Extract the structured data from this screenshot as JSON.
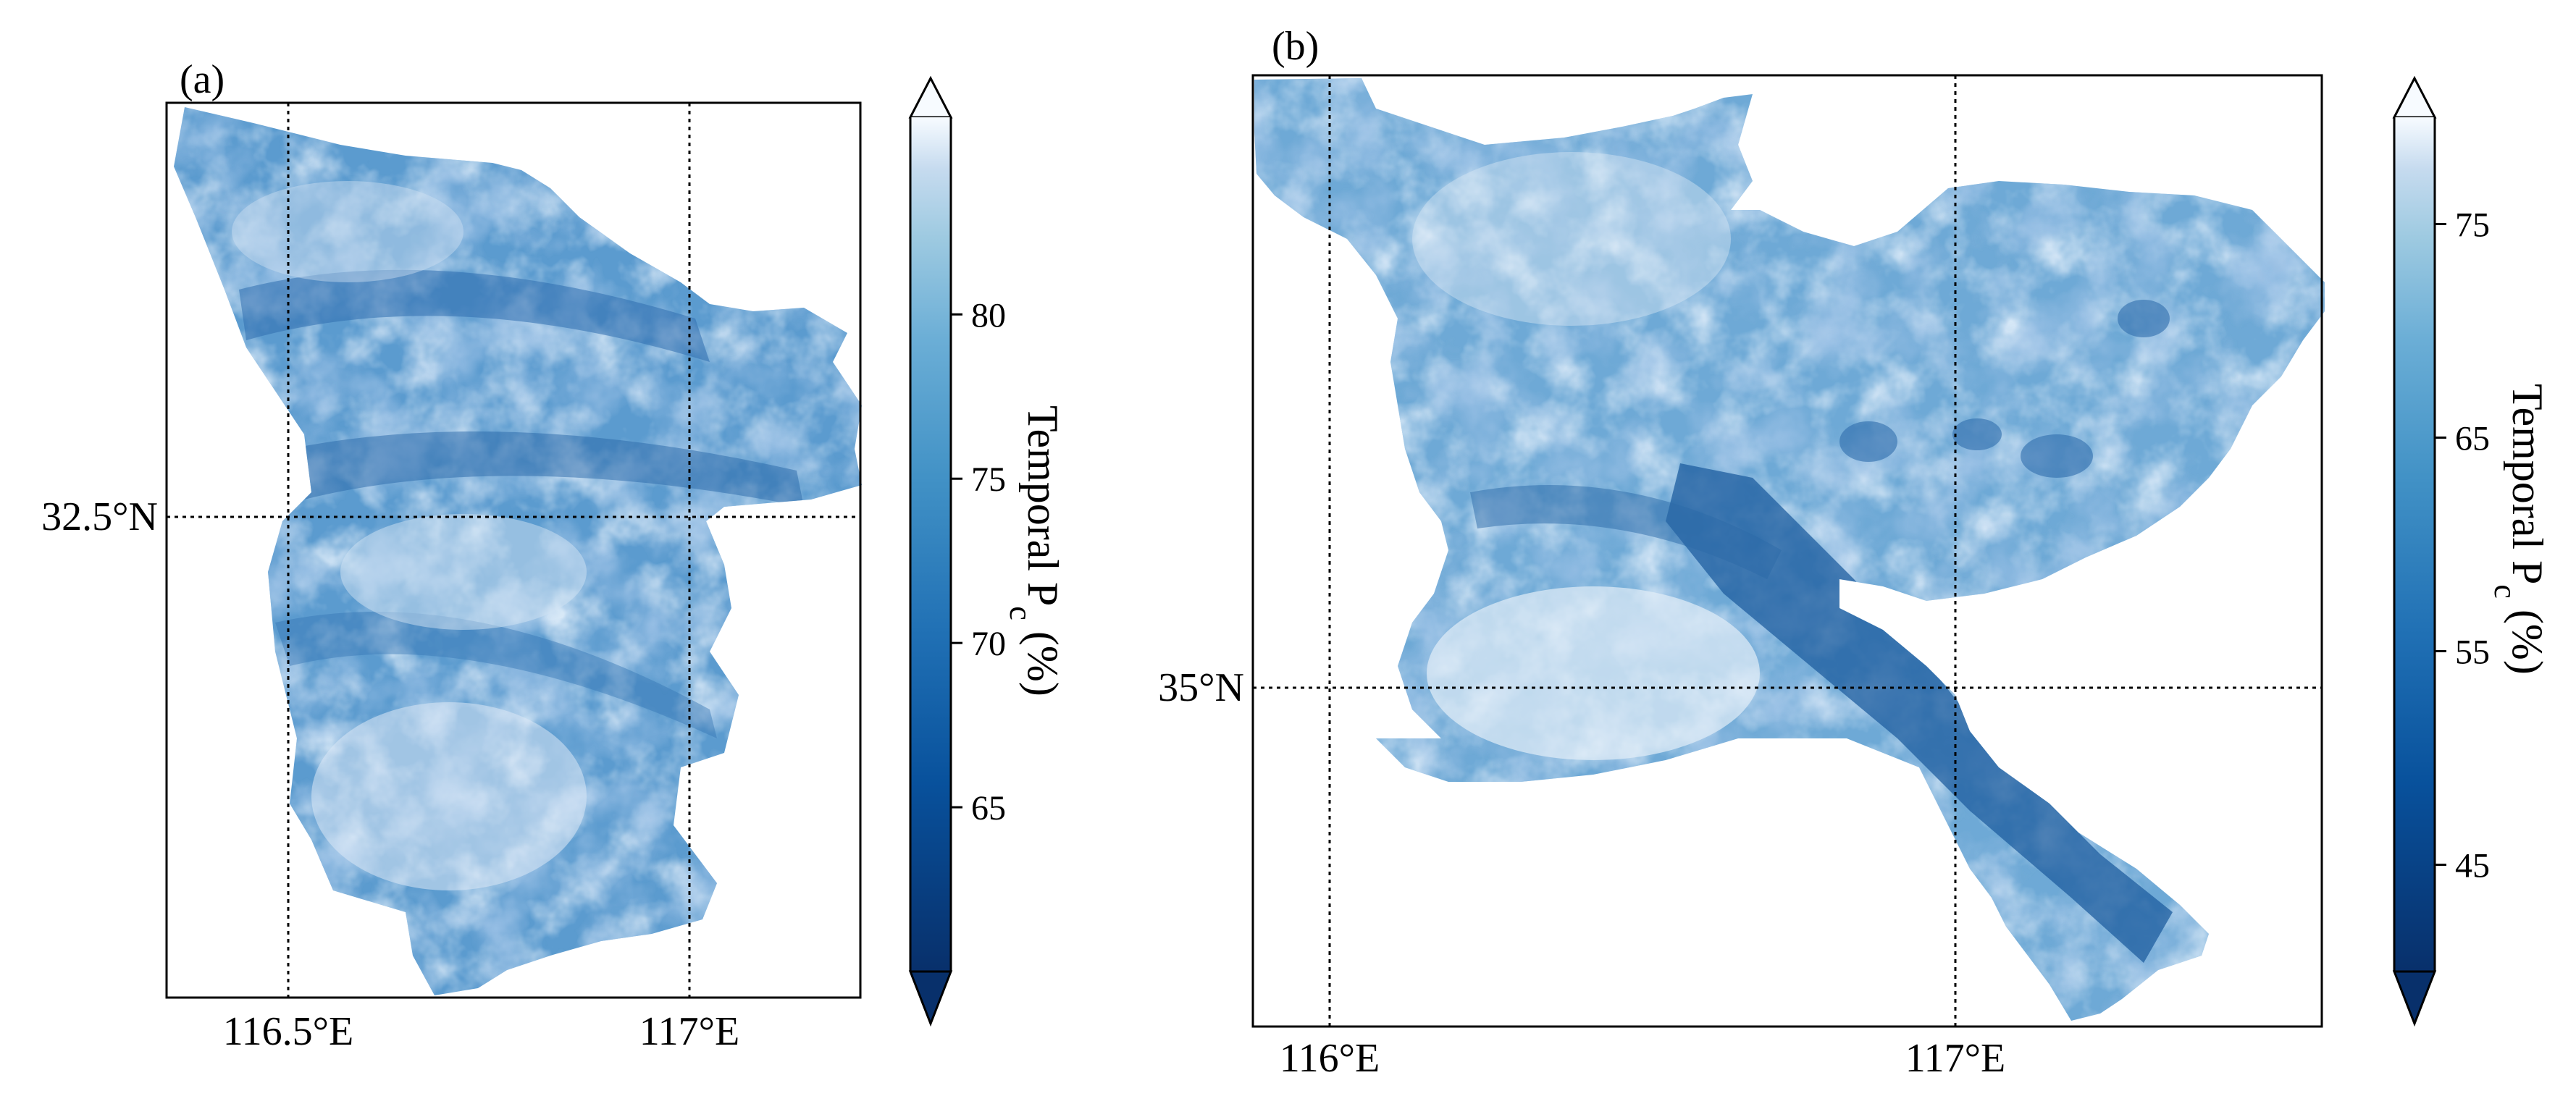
{
  "panels": [
    {
      "label": "(a)",
      "x_ticks": [
        "116.5°E",
        "117°E"
      ],
      "y_ticks": [
        "32.5°N"
      ],
      "colorbar": {
        "label_main": "Temporal P",
        "label_sub": "c",
        "label_unit": " (%)",
        "min": 60,
        "max": 86,
        "extend": "both",
        "ticks": [
          {
            "value": 65,
            "label": "65"
          },
          {
            "value": 70,
            "label": "70"
          },
          {
            "value": 75,
            "label": "75"
          },
          {
            "value": 80,
            "label": "80"
          }
        ]
      }
    },
    {
      "label": "(b)",
      "x_ticks": [
        "116°E",
        "117°E"
      ],
      "y_ticks": [
        "35°N"
      ],
      "colorbar": {
        "label_main": "Temporal P",
        "label_sub": "c",
        "label_unit": " (%)",
        "min": 40,
        "max": 80,
        "extend": "both",
        "ticks": [
          {
            "value": 45,
            "label": "45"
          },
          {
            "value": 55,
            "label": "55"
          },
          {
            "value": 65,
            "label": "65"
          },
          {
            "value": 75,
            "label": "75"
          }
        ]
      }
    }
  ],
  "colors": {
    "dark": "#08306b",
    "mid": "#2171b5",
    "light": "#c6dbef",
    "lightest": "#f7fbff"
  }
}
